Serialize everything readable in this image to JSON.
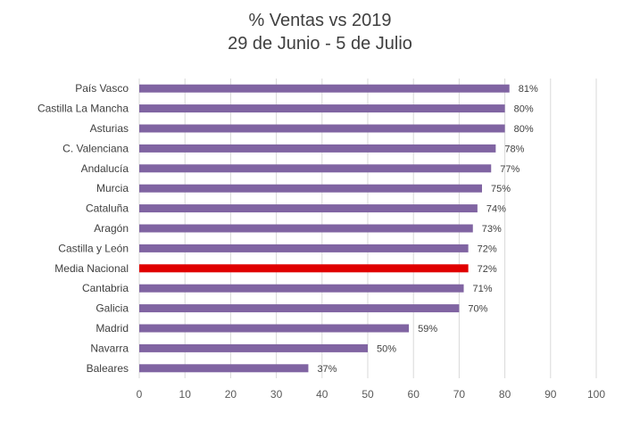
{
  "chart_data": {
    "type": "bar",
    "orientation": "horizontal",
    "title": "% Ventas vs 2019",
    "subtitle": "29 de Junio - 5 de Julio",
    "categories": [
      "País Vasco",
      "Castilla La Mancha",
      "Asturias",
      "C. Valenciana",
      "Andalucía",
      "Murcia",
      "Cataluña",
      "Aragón",
      "Castilla y León",
      "Media Nacional",
      "Cantabria",
      "Galicia",
      "Madrid",
      "Navarra",
      "Baleares"
    ],
    "values": [
      81,
      80,
      80,
      78,
      77,
      75,
      74,
      73,
      72,
      72,
      71,
      70,
      59,
      50,
      37
    ],
    "value_labels": [
      "81%",
      "80%",
      "80%",
      "78%",
      "77%",
      "75%",
      "74%",
      "73%",
      "72%",
      "72%",
      "71%",
      "70%",
      "59%",
      "50%",
      "37%"
    ],
    "highlight_category": "Media Nacional",
    "colors": {
      "bar": "#8064a2",
      "highlight": "#e00000",
      "grid": "#d9d9d9",
      "text": "#404040"
    },
    "xlim": [
      0,
      100
    ],
    "xticks": [
      0,
      10,
      20,
      30,
      40,
      50,
      60,
      70,
      80,
      90,
      100
    ],
    "grid": true,
    "legend": "none"
  }
}
